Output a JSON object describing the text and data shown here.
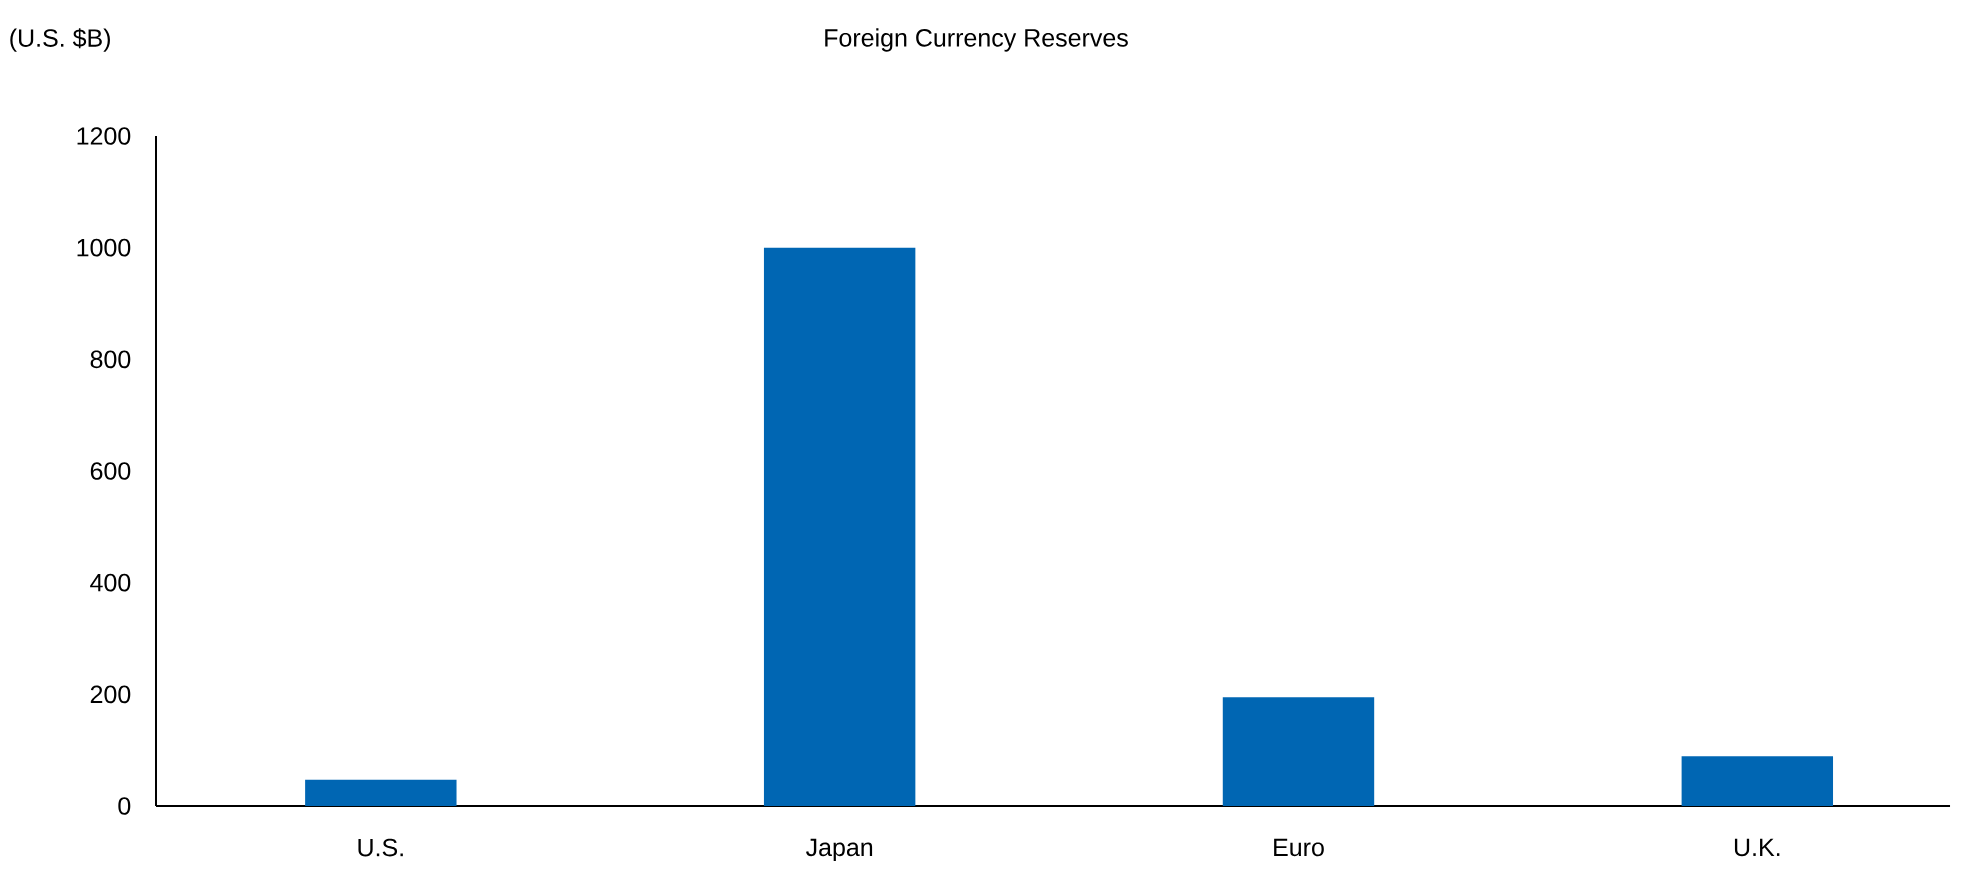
{
  "chart_data": {
    "type": "bar",
    "title": "Foreign Currency Reserves",
    "ylabel": "(U.S. $B)",
    "categories": [
      "U.S.",
      "Japan",
      "Euro",
      "U.K."
    ],
    "values": [
      47,
      1000,
      195,
      89
    ],
    "color": "#0066b3",
    "ylim": [
      0,
      1200
    ],
    "yticks": [
      0,
      200,
      400,
      600,
      800,
      1000,
      1200
    ]
  }
}
